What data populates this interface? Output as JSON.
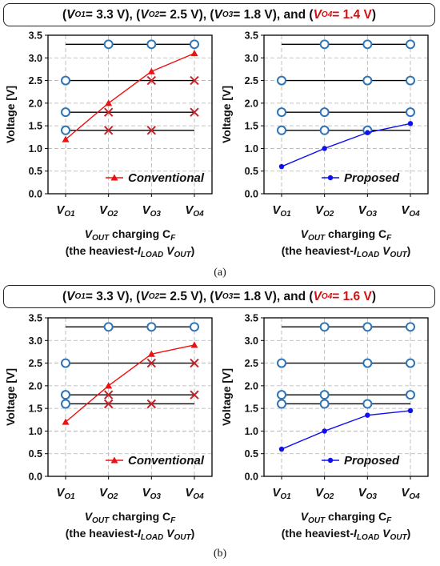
{
  "headers": [
    {
      "parts": [
        {
          "t": "(",
          "c": "k"
        },
        {
          "t": "V",
          "c": "ki"
        },
        {
          "t": "O1",
          "c": "ksub"
        },
        {
          "t": " = 3.3 V), (",
          "c": "k"
        },
        {
          "t": "V",
          "c": "ki"
        },
        {
          "t": "O2",
          "c": "ksub"
        },
        {
          "t": " = 2.5 V), (",
          "c": "k"
        },
        {
          "t": "V",
          "c": "ki"
        },
        {
          "t": "O3",
          "c": "ksub"
        },
        {
          "t": " = 1.8 V), and (",
          "c": "k"
        },
        {
          "t": "V",
          "c": "ri"
        },
        {
          "t": "O4",
          "c": "rsub"
        },
        {
          "t": " = 1.4 V",
          "c": "r"
        },
        {
          "t": ")",
          "c": "k"
        }
      ]
    },
    {
      "parts": [
        {
          "t": "(",
          "c": "k"
        },
        {
          "t": "V",
          "c": "ki"
        },
        {
          "t": "O1",
          "c": "ksub"
        },
        {
          "t": " = 3.3 V), (",
          "c": "k"
        },
        {
          "t": "V",
          "c": "ki"
        },
        {
          "t": "O2",
          "c": "ksub"
        },
        {
          "t": " = 2.5 V), (",
          "c": "k"
        },
        {
          "t": "V",
          "c": "ki"
        },
        {
          "t": "O3",
          "c": "ksub"
        },
        {
          "t": " = 1.8 V), and (",
          "c": "k"
        },
        {
          "t": "V",
          "c": "ri"
        },
        {
          "t": "O4",
          "c": "rsub"
        },
        {
          "t": " = 1.6 V",
          "c": "r"
        },
        {
          "t": ")",
          "c": "k"
        }
      ]
    }
  ],
  "captions": [
    "(a)",
    "(b)"
  ],
  "ylabel": "Voltage [V]",
  "xlabel_line1": {
    "v": "V",
    "sub": "OUT",
    "rest": " charging C",
    "csub": "F"
  },
  "xlabel_line2": {
    "pre": "(the heaviest-",
    "i": "I",
    "isub": "LOAD",
    "mid": " ",
    "v": "V",
    "vsub": "OUT",
    "post": ")"
  },
  "colors": {
    "conventional": "#ee1111",
    "proposed": "#1010ee",
    "circle": "#2f74b5",
    "cross": "#c0272d",
    "level": "#000000",
    "grid": "#b0b0b0"
  },
  "chart_data": [
    {
      "type": "line",
      "id": "a-left",
      "categories": [
        "VO1",
        "VO2",
        "VO3",
        "VO4"
      ],
      "ylim": [
        0,
        3.5
      ],
      "yticks": [
        "0.0",
        "0.5",
        "1.0",
        "1.5",
        "2.0",
        "2.5",
        "3.0",
        "3.5"
      ],
      "grid": true,
      "legend_position": "bottom-right",
      "series": [
        {
          "name": "Conventional",
          "marker": "triangle",
          "color": "#ee1111",
          "values": [
            1.2,
            2.0,
            2.7,
            3.1
          ]
        }
      ],
      "levels": [
        {
          "y": 3.3,
          "x0": 0,
          "x1": 3,
          "markers": [
            "",
            "o",
            "o",
            "o"
          ]
        },
        {
          "y": 2.5,
          "x0": 0,
          "x1": 3,
          "markers": [
            "o",
            "",
            "x",
            "x"
          ]
        },
        {
          "y": 1.8,
          "x0": 0,
          "x1": 3,
          "markers": [
            "o",
            "x",
            "",
            "x"
          ]
        },
        {
          "y": 1.4,
          "x0": 0,
          "x1": 3,
          "markers": [
            "o",
            "x",
            "x",
            ""
          ]
        }
      ]
    },
    {
      "type": "line",
      "id": "a-right",
      "categories": [
        "VO1",
        "VO2",
        "VO3",
        "VO4"
      ],
      "ylim": [
        0,
        3.5
      ],
      "yticks": [
        "0.0",
        "0.5",
        "1.0",
        "1.5",
        "2.0",
        "2.5",
        "3.0",
        "3.5"
      ],
      "grid": true,
      "legend_position": "bottom-right",
      "series": [
        {
          "name": "Proposed",
          "marker": "circle",
          "color": "#1010ee",
          "values": [
            0.6,
            1.0,
            1.35,
            1.55
          ]
        }
      ],
      "levels": [
        {
          "y": 3.3,
          "x0": 0,
          "x1": 3,
          "markers": [
            "",
            "o",
            "o",
            "o"
          ]
        },
        {
          "y": 2.5,
          "x0": 0,
          "x1": 3,
          "markers": [
            "o",
            "",
            "o",
            "o"
          ]
        },
        {
          "y": 1.8,
          "x0": 0,
          "x1": 3,
          "markers": [
            "o",
            "o",
            "",
            "o"
          ]
        },
        {
          "y": 1.4,
          "x0": 0,
          "x1": 3,
          "markers": [
            "o",
            "o",
            "o",
            ""
          ]
        }
      ]
    },
    {
      "type": "line",
      "id": "b-left",
      "categories": [
        "VO1",
        "VO2",
        "VO3",
        "VO4"
      ],
      "ylim": [
        0,
        3.5
      ],
      "yticks": [
        "0.0",
        "0.5",
        "1.0",
        "1.5",
        "2.0",
        "2.5",
        "3.0",
        "3.5"
      ],
      "grid": true,
      "legend_position": "bottom-right",
      "series": [
        {
          "name": "Conventional",
          "marker": "triangle",
          "color": "#ee1111",
          "values": [
            1.2,
            2.0,
            2.7,
            2.9
          ]
        }
      ],
      "levels": [
        {
          "y": 3.3,
          "x0": 0,
          "x1": 3,
          "markers": [
            "",
            "o",
            "o",
            "o"
          ]
        },
        {
          "y": 2.5,
          "x0": 0,
          "x1": 3,
          "markers": [
            "o",
            "",
            "x",
            "x"
          ]
        },
        {
          "y": 1.8,
          "x0": 0,
          "x1": 3,
          "markers": [
            "o",
            "x",
            "",
            "x"
          ]
        },
        {
          "y": 1.6,
          "x0": 0,
          "x1": 3,
          "markers": [
            "o",
            "x",
            "x",
            ""
          ]
        }
      ]
    },
    {
      "type": "line",
      "id": "b-right",
      "categories": [
        "VO1",
        "VO2",
        "VO3",
        "VO4"
      ],
      "ylim": [
        0,
        3.5
      ],
      "yticks": [
        "0.0",
        "0.5",
        "1.0",
        "1.5",
        "2.0",
        "2.5",
        "3.0",
        "3.5"
      ],
      "grid": true,
      "legend_position": "bottom-right",
      "series": [
        {
          "name": "Proposed",
          "marker": "circle",
          "color": "#1010ee",
          "values": [
            0.6,
            1.0,
            1.35,
            1.45
          ]
        }
      ],
      "levels": [
        {
          "y": 3.3,
          "x0": 0,
          "x1": 3,
          "markers": [
            "",
            "o",
            "o",
            "o"
          ]
        },
        {
          "y": 2.5,
          "x0": 0,
          "x1": 3,
          "markers": [
            "o",
            "",
            "o",
            "o"
          ]
        },
        {
          "y": 1.8,
          "x0": 0,
          "x1": 3,
          "markers": [
            "o",
            "o",
            "",
            "o"
          ]
        },
        {
          "y": 1.6,
          "x0": 0,
          "x1": 3,
          "markers": [
            "o",
            "o",
            "o",
            ""
          ]
        }
      ]
    }
  ]
}
